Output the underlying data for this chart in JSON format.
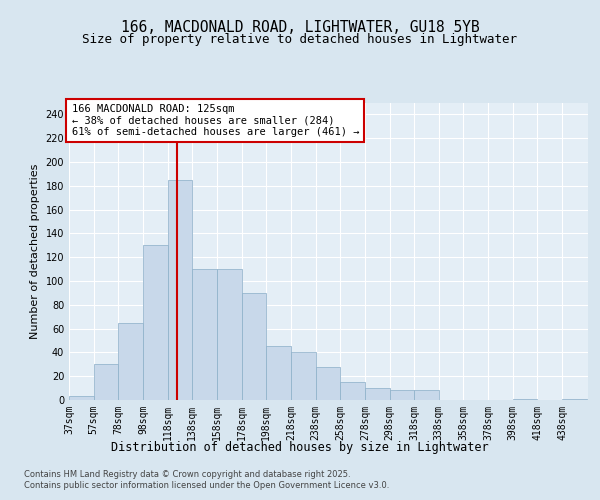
{
  "title1": "166, MACDONALD ROAD, LIGHTWATER, GU18 5YB",
  "title2": "Size of property relative to detached houses in Lightwater",
  "xlabel": "Distribution of detached houses by size in Lightwater",
  "ylabel": "Number of detached properties",
  "bar_color": "#c8d8ea",
  "bar_edge_color": "#8aaec8",
  "background_color": "#d8e6f0",
  "plot_bg_color": "#e4eef6",
  "grid_color": "#ffffff",
  "vline_color": "#cc0000",
  "vline_x": 125,
  "bin_start": 37,
  "bin_width": 20,
  "bar_values": [
    3,
    30,
    65,
    130,
    185,
    110,
    110,
    90,
    45,
    40,
    28,
    15,
    10,
    8,
    8,
    0,
    0,
    0,
    1,
    0,
    1
  ],
  "xlim_left": 37,
  "xlim_right": 458,
  "ylim_top": 250,
  "yticks": [
    0,
    20,
    40,
    60,
    80,
    100,
    120,
    140,
    160,
    180,
    200,
    220,
    240
  ],
  "xtick_labels": [
    "37sqm",
    "57sqm",
    "78sqm",
    "98sqm",
    "118sqm",
    "138sqm",
    "158sqm",
    "178sqm",
    "198sqm",
    "218sqm",
    "238sqm",
    "258sqm",
    "278sqm",
    "298sqm",
    "318sqm",
    "338sqm",
    "358sqm",
    "378sqm",
    "398sqm",
    "418sqm",
    "438sqm"
  ],
  "annotation_title": "166 MACDONALD ROAD: 125sqm",
  "annotation_line1": "← 38% of detached houses are smaller (284)",
  "annotation_line2": "61% of semi-detached houses are larger (461) →",
  "footer1": "Contains HM Land Registry data © Crown copyright and database right 2025.",
  "footer2": "Contains public sector information licensed under the Open Government Licence v3.0.",
  "title_fontsize": 10.5,
  "subtitle_fontsize": 9,
  "axis_label_fontsize": 8,
  "tick_fontsize": 7,
  "annotation_fontsize": 7.5,
  "footer_fontsize": 6
}
